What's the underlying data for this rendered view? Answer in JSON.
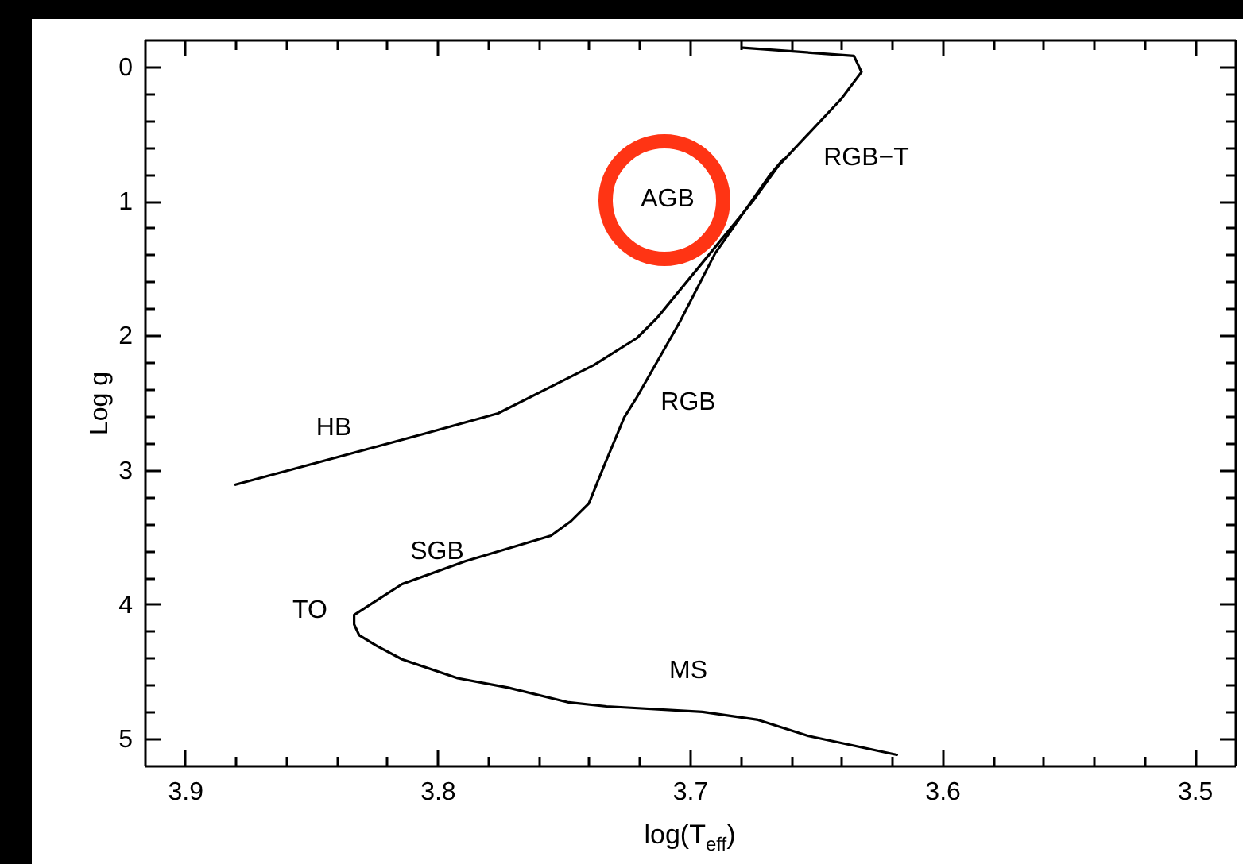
{
  "chart_data": {
    "type": "line",
    "xlabel": "log(T$_{eff}$)",
    "ylabel": "Log g",
    "xlim": [
      3.916,
      3.484
    ],
    "ylim": [
      5.2,
      -0.2
    ],
    "xticks": [
      3.9,
      {
        "value": 3.88,
        "label": null
      },
      {
        "value": 3.86,
        "label": null
      },
      {
        "value": 3.84,
        "label": null
      },
      {
        "value": 3.82,
        "label": null
      },
      3.8,
      {
        "value": 3.78,
        "label": null
      },
      {
        "value": 3.76,
        "label": null
      },
      {
        "value": 3.74,
        "label": null
      },
      {
        "value": 3.72,
        "label": null
      },
      3.7,
      {
        "value": 3.68,
        "label": null
      },
      {
        "value": 3.66,
        "label": null
      },
      {
        "value": 3.64,
        "label": null
      },
      {
        "value": 3.62,
        "label": null
      },
      3.6,
      {
        "value": 3.58,
        "label": null
      },
      {
        "value": 3.56,
        "label": null
      },
      {
        "value": 3.54,
        "label": null
      },
      {
        "value": 3.52,
        "label": null
      },
      3.5
    ],
    "yticks": [
      0,
      {
        "value": 0.2,
        "label": null
      },
      {
        "value": 0.4,
        "label": null
      },
      {
        "value": 0.6,
        "label": null
      },
      {
        "value": 0.8,
        "label": null
      },
      1,
      {
        "value": 1.2,
        "label": null
      },
      {
        "value": 1.4,
        "label": null
      },
      {
        "value": 1.6,
        "label": null
      },
      {
        "value": 1.8,
        "label": null
      },
      2,
      {
        "value": 2.2,
        "label": null
      },
      {
        "value": 2.4,
        "label": null
      },
      {
        "value": 2.6,
        "label": null
      },
      {
        "value": 2.8,
        "label": null
      },
      3,
      {
        "value": 3.2,
        "label": null
      },
      {
        "value": 3.4,
        "label": null
      },
      {
        "value": 3.6,
        "label": null
      },
      {
        "value": 3.8,
        "label": null
      },
      4,
      {
        "value": 4.2,
        "label": null
      },
      {
        "value": 4.4,
        "label": null
      },
      {
        "value": 4.6,
        "label": null
      },
      {
        "value": 4.8,
        "label": null
      },
      5
    ],
    "grid": false,
    "marker": "none",
    "line_style": "solid",
    "series": [
      {
        "color": "#000000",
        "x": [
          3.618,
          3.653,
          3.673,
          3.695,
          3.733,
          3.748,
          3.772,
          3.792,
          3.814,
          3.824,
          3.831,
          3.833,
          3.833,
          3.824,
          3.814,
          3.789,
          3.755,
          3.747,
          3.74,
          3.734,
          3.726,
          3.721,
          3.704,
          3.69,
          3.677,
          3.668,
          3.663
        ],
        "values": [
          5.12,
          4.98,
          4.86,
          4.8,
          4.76,
          4.73,
          4.62,
          4.55,
          4.41,
          4.31,
          4.23,
          4.15,
          4.08,
          3.97,
          3.85,
          3.68,
          3.49,
          3.38,
          3.25,
          2.97,
          2.61,
          2.46,
          1.9,
          1.39,
          1.04,
          0.8,
          0.69
        ]
      },
      {
        "color": "#000000",
        "x": [
          3.88,
          3.805,
          3.776,
          3.738,
          3.721,
          3.713,
          3.692,
          3.675,
          3.665,
          3.64,
          3.632,
          3.635,
          3.679
        ],
        "values": [
          3.11,
          2.73,
          2.58,
          2.22,
          2.02,
          1.87,
          1.39,
          1.0,
          0.74,
          0.24,
          0.04,
          -0.08,
          -0.14
        ]
      }
    ],
    "annotations": [
      "AGB",
      "RGB−T",
      "HB",
      "RGB",
      "SGB",
      "TO",
      "MS"
    ]
  }
}
